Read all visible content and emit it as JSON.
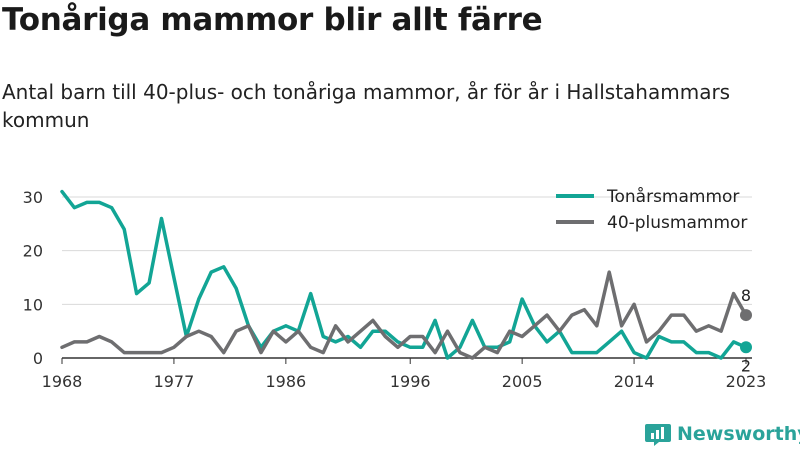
{
  "title": "Tonåriga mammor blir allt färre",
  "subtitle": "Antal barn till 40-plus- och tonåriga mammor, år för år i Hallstahammars kommun",
  "brand": "Newsworthy",
  "colors": {
    "teens": "#12a595",
    "forty": "#6e6e70",
    "grid": "#d9d9d9",
    "brand": "#2aa39a"
  },
  "chart_data": {
    "type": "line",
    "title": "Tonåriga mammor blir allt färre",
    "subtitle": "Antal barn till 40-plus- och tonåriga mammor, år för år i Hallstahammars kommun",
    "xlabel": "",
    "ylabel": "",
    "xlim": [
      1968,
      2023
    ],
    "ylim": [
      0,
      30
    ],
    "x_ticks": [
      1968,
      1977,
      1986,
      1996,
      2005,
      2014,
      2023
    ],
    "y_ticks": [
      0,
      10,
      20,
      30
    ],
    "grid": true,
    "legend_position": "top-right",
    "x": [
      1968,
      1969,
      1970,
      1971,
      1972,
      1973,
      1974,
      1975,
      1976,
      1977,
      1978,
      1979,
      1980,
      1981,
      1982,
      1983,
      1984,
      1985,
      1986,
      1987,
      1988,
      1989,
      1990,
      1991,
      1992,
      1993,
      1994,
      1995,
      1996,
      1997,
      1998,
      1999,
      2000,
      2001,
      2002,
      2003,
      2004,
      2005,
      2006,
      2007,
      2008,
      2009,
      2010,
      2011,
      2012,
      2013,
      2014,
      2015,
      2016,
      2017,
      2018,
      2019,
      2020,
      2021,
      2022,
      2023
    ],
    "series": [
      {
        "name": "Tonårsmammor",
        "color": "#12a595",
        "values": [
          31,
          28,
          29,
          29,
          28,
          24,
          12,
          14,
          26,
          15,
          4,
          11,
          16,
          17,
          13,
          6,
          2,
          5,
          6,
          5,
          12,
          4,
          3,
          4,
          2,
          5,
          5,
          3,
          2,
          2,
          7,
          0,
          2,
          7,
          2,
          2,
          3,
          11,
          6,
          3,
          5,
          1,
          1,
          1,
          3,
          5,
          1,
          0,
          4,
          3,
          3,
          1,
          1,
          0,
          3,
          2
        ]
      },
      {
        "name": "40-plusmammor",
        "color": "#6e6e70",
        "values": [
          2,
          3,
          3,
          4,
          3,
          1,
          1,
          1,
          1,
          2,
          4,
          5,
          4,
          1,
          5,
          6,
          1,
          5,
          3,
          5,
          2,
          1,
          6,
          3,
          5,
          7,
          4,
          2,
          4,
          4,
          1,
          5,
          1,
          0,
          2,
          1,
          5,
          4,
          6,
          8,
          5,
          8,
          9,
          6,
          16,
          6,
          10,
          3,
          5,
          8,
          8,
          5,
          6,
          5,
          12,
          8
        ]
      }
    ],
    "end_labels": [
      {
        "series": "40-plusmammor",
        "x": 2023,
        "value": 8,
        "text": "8"
      },
      {
        "series": "Tonårsmammor",
        "x": 2023,
        "value": 2,
        "text": "2"
      }
    ]
  }
}
